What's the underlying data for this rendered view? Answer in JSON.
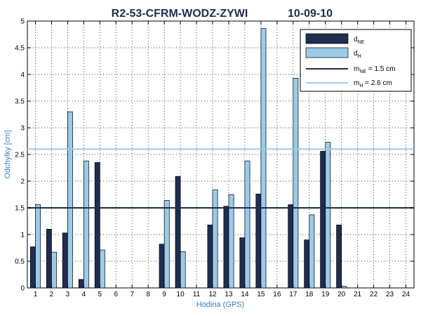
{
  "chart_data": {
    "type": "bar",
    "title_left": "R2-53-CFRM-WODZ-ZYWI",
    "title_right": "10-09-10",
    "xlabel": "Hodina (GPS)",
    "ylabel": "Odchylky [cm]",
    "ylim": [
      0,
      5
    ],
    "yticks": [
      "0",
      "0.5",
      "1",
      "1.5",
      "2",
      "2.5",
      "3",
      "3.5",
      "4",
      "4.5",
      "5"
    ],
    "categories": [
      "1",
      "2",
      "3",
      "4",
      "5",
      "6",
      "7",
      "8",
      "9",
      "10",
      "11",
      "12",
      "13",
      "14",
      "15",
      "16",
      "17",
      "18",
      "19",
      "20",
      "21",
      "22",
      "23",
      "24"
    ],
    "grid": true,
    "legend_position": "top-right",
    "series": [
      {
        "name_main": "d",
        "name_sub": "NE",
        "color": "#1f2d4f",
        "values": [
          0.77,
          1.1,
          1.03,
          0.16,
          2.35,
          null,
          null,
          null,
          0.82,
          2.09,
          null,
          1.18,
          1.53,
          0.94,
          1.76,
          null,
          1.56,
          0.9,
          2.56,
          1.18,
          null,
          null,
          null,
          null
        ]
      },
      {
        "name_main": "d",
        "name_sub": "H",
        "color": "#9ccbea",
        "values": [
          1.56,
          0.67,
          3.3,
          2.38,
          0.71,
          null,
          null,
          null,
          1.64,
          0.68,
          null,
          1.84,
          1.75,
          2.38,
          4.86,
          null,
          3.93,
          1.37,
          2.73,
          0.03,
          null,
          null,
          null,
          null
        ]
      }
    ],
    "reference_lines": [
      {
        "name_main": "m",
        "name_sub": "NE",
        "label_suffix": " = 1.5 cm",
        "value": 1.5,
        "color": "#1f2d4f"
      },
      {
        "name_main": "m",
        "name_sub": "H",
        "label_suffix": "  = 2.6 cm",
        "value": 2.6,
        "color": "#9ccbea"
      }
    ]
  }
}
